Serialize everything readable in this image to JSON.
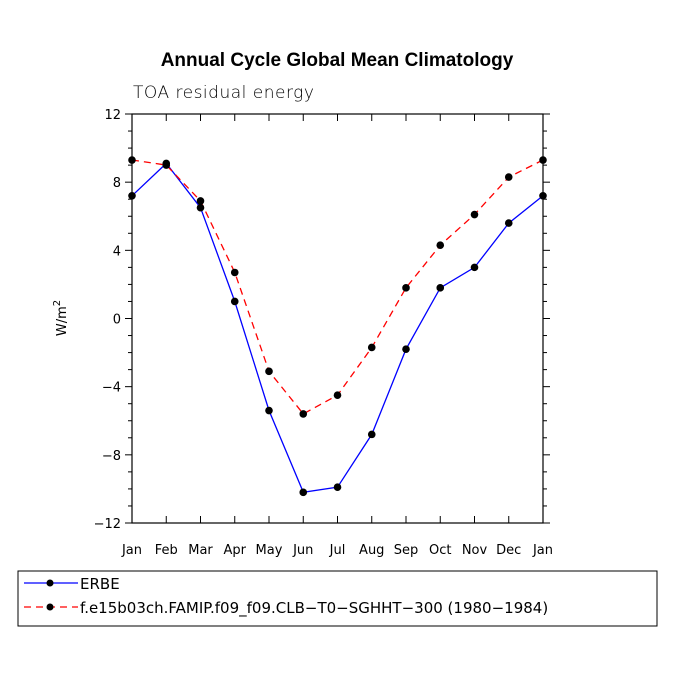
{
  "chart_data": {
    "type": "line",
    "title": "Annual Cycle Global Mean Climatology",
    "subtitle": "TOA residual energy",
    "ylabel_base": "W/m",
    "ylabel_exp": "2",
    "xlabel": "",
    "categories": [
      "Jan",
      "Feb",
      "Mar",
      "Apr",
      "May",
      "Jun",
      "Jul",
      "Aug",
      "Sep",
      "Oct",
      "Nov",
      "Dec",
      "Jan"
    ],
    "ylim": [
      -12,
      12
    ],
    "yticks": [
      -12,
      -8,
      -4,
      0,
      4,
      8,
      12
    ],
    "ytick_labels": [
      "−12",
      "−8",
      "−4",
      "0",
      "4",
      "8",
      "12"
    ],
    "yminor_step": 1,
    "series": [
      {
        "name": "ERBE",
        "color": "#0000ff",
        "style": "solid",
        "values": [
          7.2,
          9.1,
          6.5,
          1.0,
          -5.4,
          -10.2,
          -9.9,
          -6.8,
          -1.8,
          1.8,
          3.0,
          5.6,
          7.2
        ]
      },
      {
        "name": "f.e15b03ch.FAMIP.f09_f09.CLB−T0−SGHHT−300 (1980−1984)",
        "color": "#ff0000",
        "style": "dashed",
        "values": [
          9.3,
          9.0,
          6.9,
          2.7,
          -3.1,
          -5.6,
          -4.5,
          -1.7,
          1.8,
          4.3,
          6.1,
          8.3,
          9.3
        ]
      }
    ],
    "legend_position": "bottom",
    "grid": false
  }
}
